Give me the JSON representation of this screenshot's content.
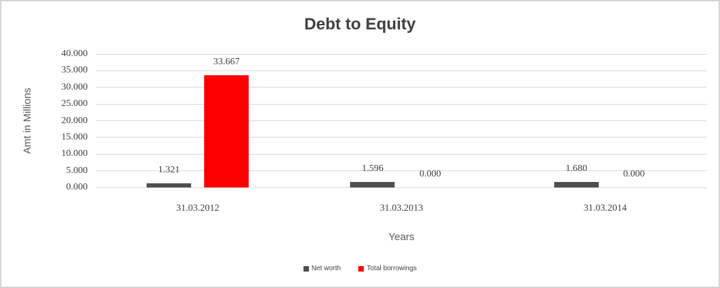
{
  "frame": {
    "background": "#FFFFFF",
    "border_color": "#D4D4D4"
  },
  "chart_data": {
    "type": "bar",
    "title": "Debt to Equity",
    "xlabel": "Years",
    "ylabel": "Amt in Millions",
    "categories": [
      "31.03.2012",
      "31.03.2013",
      "31.03.2014"
    ],
    "series": [
      {
        "name": "Net worth",
        "color": "#4F4F4F",
        "values": [
          1.321,
          1.596,
          1.68
        ],
        "labels": [
          "1.321",
          "1.596",
          "1.680"
        ]
      },
      {
        "name": "Total borrowings",
        "color": "#FF0000",
        "values": [
          33.667,
          0,
          0
        ],
        "labels": [
          "33.667",
          "0.000",
          "0.000"
        ]
      }
    ],
    "ylim": [
      0,
      40
    ],
    "yticks": [
      40,
      35,
      30,
      25,
      20,
      15,
      10,
      5,
      0
    ],
    "ytick_labels": [
      "40.000",
      "35.000",
      "30.000",
      "25.000",
      "20.000",
      "15.000",
      "10.000",
      "5.000",
      "0.000"
    ],
    "grid": true,
    "gridline_color": "#D9D9D9",
    "legend_position": "bottom"
  }
}
